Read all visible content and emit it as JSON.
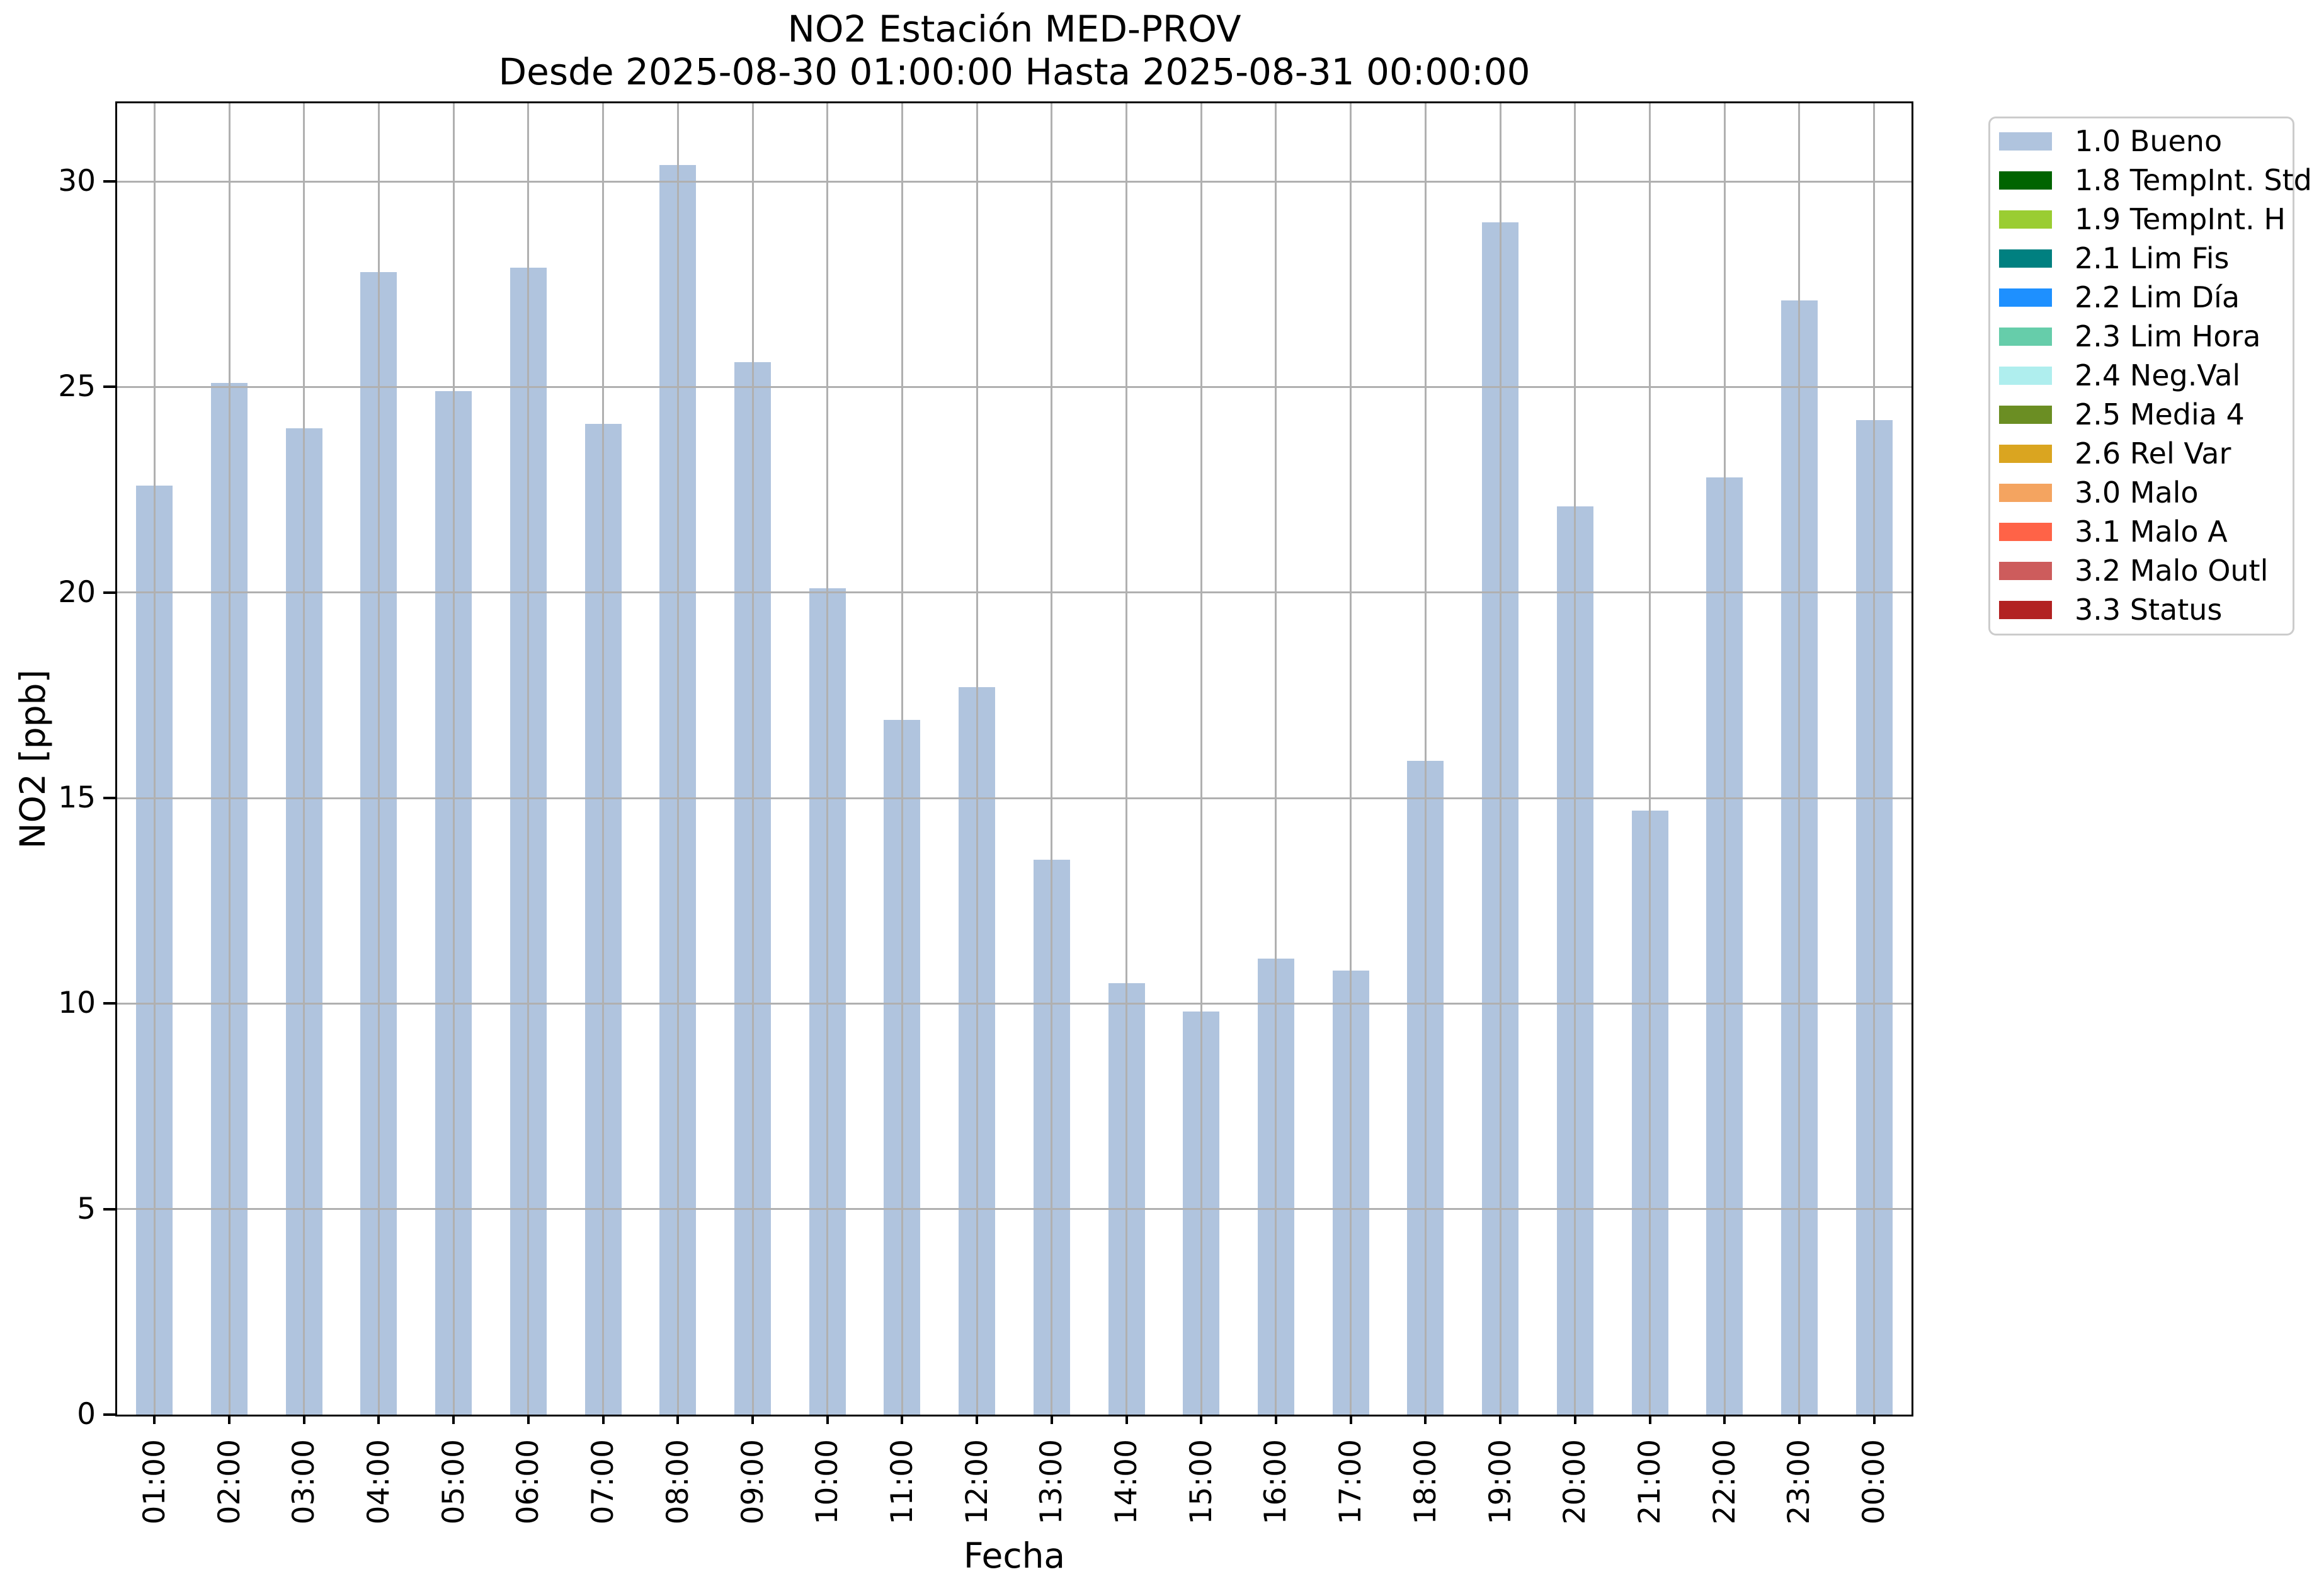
{
  "chart_data": {
    "type": "bar",
    "title": "NO2 Estación MED-PROV",
    "subtitle": "Desde 2025-08-30 01:00:00 Hasta 2025-08-31 00:00:00",
    "xlabel": "Fecha",
    "ylabel": "NO2 [ppb]",
    "categories": [
      "01:00",
      "02:00",
      "03:00",
      "04:00",
      "05:00",
      "06:00",
      "07:00",
      "08:00",
      "09:00",
      "10:00",
      "11:00",
      "12:00",
      "13:00",
      "14:00",
      "15:00",
      "16:00",
      "17:00",
      "18:00",
      "19:00",
      "20:00",
      "21:00",
      "22:00",
      "23:00",
      "00:00"
    ],
    "values": [
      22.6,
      25.1,
      24.0,
      27.8,
      24.9,
      27.9,
      24.1,
      30.4,
      25.6,
      20.1,
      16.9,
      17.7,
      13.5,
      10.5,
      9.8,
      11.1,
      10.8,
      15.9,
      29.0,
      22.1,
      14.7,
      22.8,
      27.1,
      24.2
    ],
    "yticks": [
      0,
      5,
      10,
      15,
      20,
      25,
      30
    ],
    "ylim": [
      0,
      31.9
    ],
    "bar_color": "#b0c4de",
    "grid": true,
    "grid_color": "#b0b0b0",
    "legend_position": "outside-right",
    "legend": [
      {
        "label": "1.0 Bueno",
        "color": "#b0c4de"
      },
      {
        "label": "1.8 TempInt. Std",
        "color": "#006400"
      },
      {
        "label": "1.9 TempInt. H",
        "color": "#9acd32"
      },
      {
        "label": "2.1 Lim Fis",
        "color": "#008080"
      },
      {
        "label": "2.2 Lim Día",
        "color": "#1e90ff"
      },
      {
        "label": "2.3 Lim Hora",
        "color": "#66cdaa"
      },
      {
        "label": "2.4 Neg.Val",
        "color": "#afeeee"
      },
      {
        "label": "2.5 Media 4",
        "color": "#6b8e23"
      },
      {
        "label": "2.6 Rel Var",
        "color": "#daa520"
      },
      {
        "label": "3.0 Malo",
        "color": "#f4a460"
      },
      {
        "label": "3.1 Malo A",
        "color": "#ff6347"
      },
      {
        "label": "3.2 Malo Outl",
        "color": "#cd5c5c"
      },
      {
        "label": "3.3 Status",
        "color": "#b22222"
      }
    ]
  }
}
